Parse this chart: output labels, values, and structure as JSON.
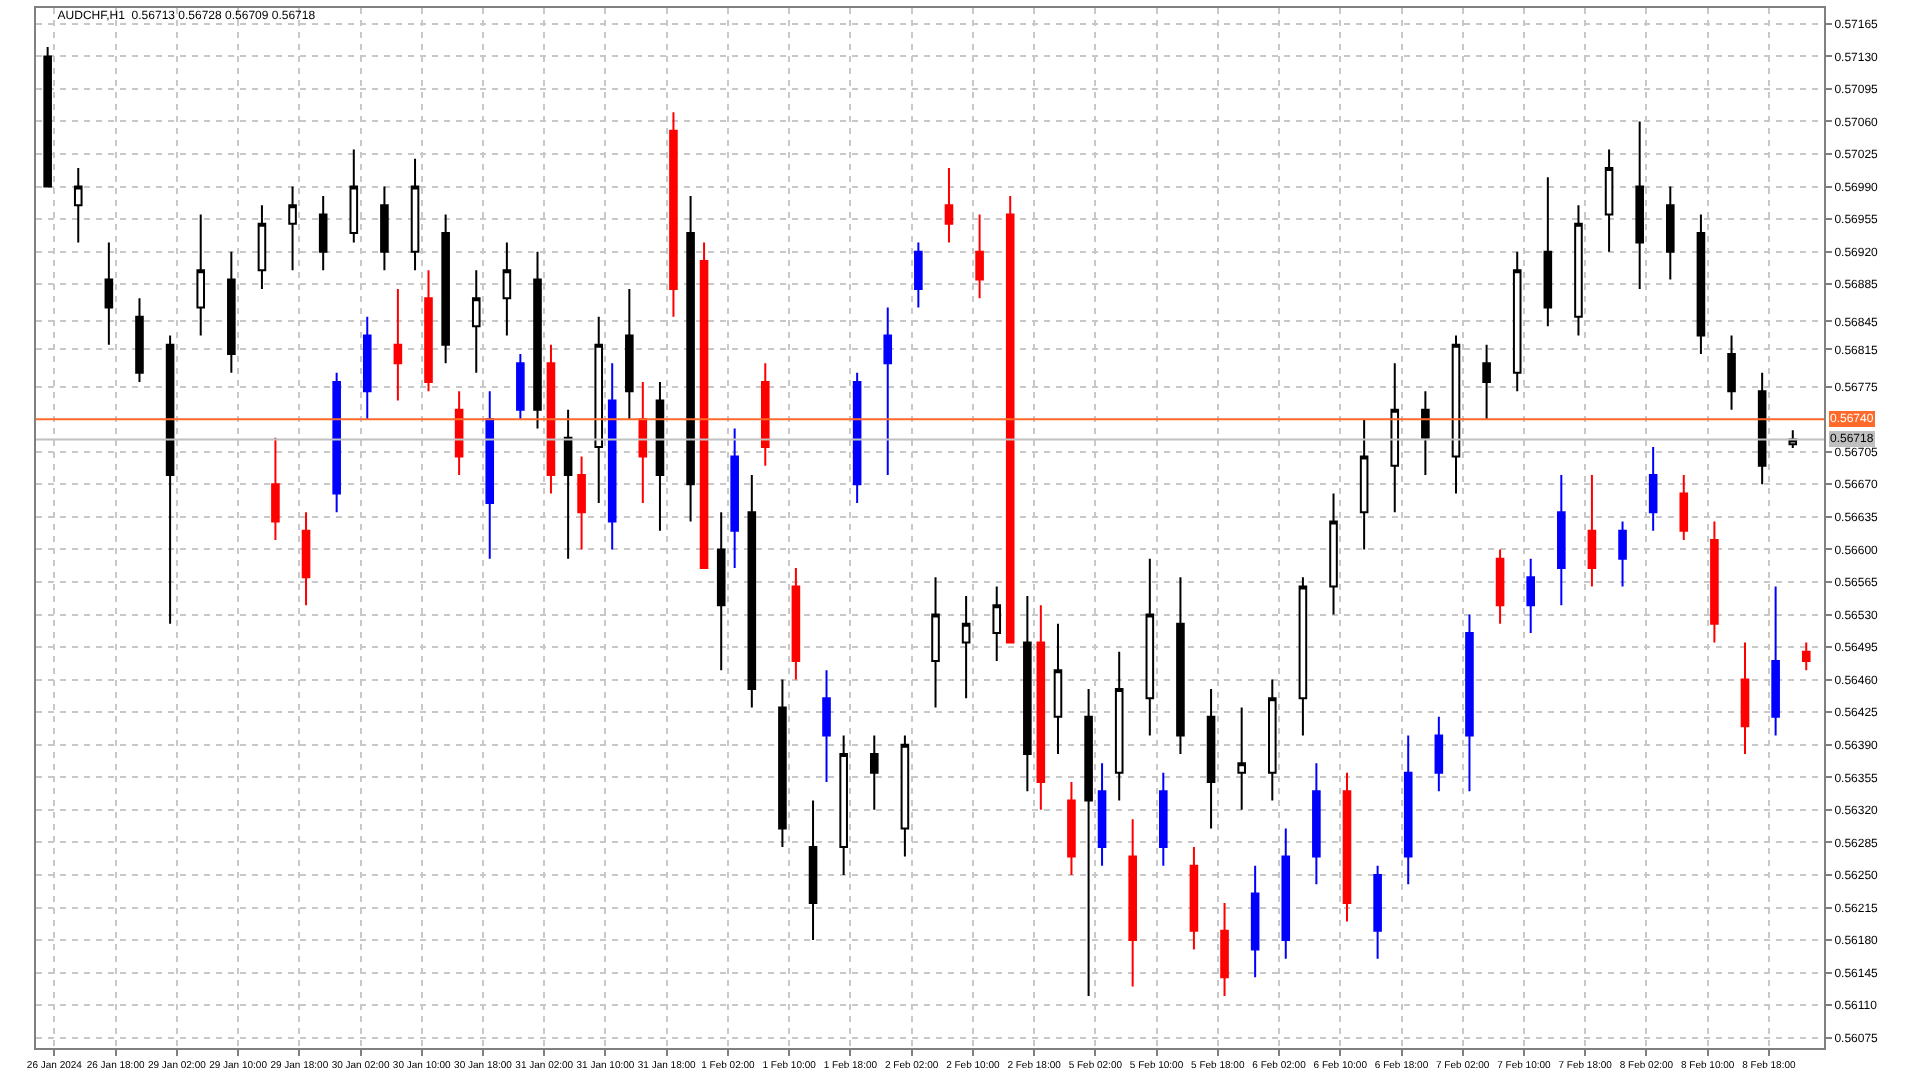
{
  "chart_data": {
    "type": "candlestick",
    "title": "AUDCHF,H1  0.56713 0.56728 0.56709 0.56718",
    "categories": [
      "26 Jan 2024",
      null,
      "26 Jan 18:00",
      null,
      "29 Jan 02:00",
      null,
      "29 Jan 10:00",
      null,
      "29 Jan 18:00",
      null,
      "30 Jan 02:00",
      null,
      "30 Jan 10:00",
      null,
      "30 Jan 18:00",
      null,
      "31 Jan 02:00",
      null,
      "31 Jan 10:00",
      null,
      "31 Jan 18:00",
      null,
      "1 Feb 02:00",
      null,
      "1 Feb 10:00",
      null,
      "1 Feb 18:00",
      null,
      "2 Feb 02:00",
      null,
      "2 Feb 10:00",
      null,
      "2 Feb 18:00",
      null,
      "5 Feb 02:00",
      null,
      "5 Feb 10:00",
      null,
      "5 Feb 18:00",
      null,
      "6 Feb 02:00",
      null,
      "6 Feb 10:00",
      null,
      "6 Feb 18:00",
      null,
      "7 Feb 02:00",
      null,
      "7 Feb 10:00",
      null,
      "7 Feb 18:00",
      null,
      "8 Feb 02:00",
      null,
      "8 Feb 10:00",
      null,
      "8 Feb 18:00",
      null
    ],
    "ylim": [
      0.56064,
      0.57182
    ],
    "yticks": [
      {
        "value": 0.56075,
        "label": "0.56075"
      },
      {
        "value": 0.5611,
        "label": "0.56110"
      },
      {
        "value": 0.56145,
        "label": "0.56145"
      },
      {
        "value": 0.5618,
        "label": "0.56180"
      },
      {
        "value": 0.56215,
        "label": "0.56215"
      },
      {
        "value": 0.5625,
        "label": "0.56250"
      },
      {
        "value": 0.56285,
        "label": "0.56285"
      },
      {
        "value": 0.5632,
        "label": "0.56320"
      },
      {
        "value": 0.56355,
        "label": "0.56355"
      },
      {
        "value": 0.5639,
        "label": "0.56390"
      },
      {
        "value": 0.56425,
        "label": "0.56425"
      },
      {
        "value": 0.5646,
        "label": "0.56460"
      },
      {
        "value": 0.56495,
        "label": "0.56495"
      },
      {
        "value": 0.5653,
        "label": "0.56530"
      },
      {
        "value": 0.56565,
        "label": "0.56565"
      },
      {
        "value": 0.566,
        "label": "0.56600"
      },
      {
        "value": 0.56635,
        "label": "0.56635"
      },
      {
        "value": 0.5667,
        "label": "0.56670"
      },
      {
        "value": 0.56705,
        "label": "0.56705"
      },
      {
        "value": 0.56775,
        "label": "0.56775"
      },
      {
        "value": 0.56815,
        "label": "0.56815"
      },
      {
        "value": 0.56845,
        "label": "0.56845"
      },
      {
        "value": 0.56885,
        "label": "0.56885"
      },
      {
        "value": 0.5692,
        "label": "0.56920"
      },
      {
        "value": 0.56955,
        "label": "0.56955"
      },
      {
        "value": 0.5699,
        "label": "0.56990"
      },
      {
        "value": 0.57025,
        "label": "0.57025"
      },
      {
        "value": 0.5706,
        "label": "0.57060"
      },
      {
        "value": 0.57095,
        "label": "0.57095"
      },
      {
        "value": 0.5713,
        "label": "0.57130"
      },
      {
        "value": 0.57165,
        "label": "0.57165"
      }
    ],
    "grid": true,
    "ref_lines": [
      {
        "axis": "y",
        "value": 0.5674,
        "label": "0.56740",
        "color": "#ff6a2a"
      },
      {
        "axis": "y",
        "value": 0.56718,
        "label": "0.56718",
        "color": "#c0c0c0"
      }
    ],
    "series": [
      {
        "color": "#000000",
        "ohlc": [
          [
            0.5713,
            0.5714,
            0.5699,
            0.5699
          ],
          [
            0.5697,
            0.5701,
            0.5693,
            0.5699
          ],
          [
            0.5689,
            0.5693,
            0.5682,
            0.5686
          ],
          [
            0.5685,
            0.5687,
            0.5678,
            0.5679
          ],
          [
            0.5682,
            0.5683,
            0.5652,
            0.5668
          ],
          [
            0.5686,
            0.5696,
            0.5683,
            0.569
          ],
          [
            0.5689,
            0.5692,
            0.5679,
            0.5681
          ],
          [
            0.569,
            0.5697,
            0.5688,
            0.5695
          ],
          [
            0.5695,
            0.5699,
            0.569,
            0.5697
          ],
          [
            0.5696,
            0.5698,
            0.569,
            0.5692
          ],
          [
            0.5694,
            0.5703,
            0.5693,
            0.5699
          ],
          [
            0.5697,
            0.5699,
            0.569,
            0.5692
          ],
          [
            0.5692,
            0.5702,
            0.569,
            0.5699
          ],
          [
            0.5694,
            0.5696,
            0.568,
            0.5682
          ],
          [
            0.5684,
            0.569,
            0.5679,
            0.5687
          ],
          [
            0.5687,
            0.5693,
            0.5683,
            0.569
          ],
          [
            0.5689,
            0.5692,
            0.5673,
            0.5675
          ],
          [
            0.5672,
            0.5675,
            0.5659,
            0.5668
          ],
          [
            0.5671,
            0.5685,
            0.5665,
            0.5682
          ],
          [
            0.5683,
            0.5688,
            0.5674,
            0.5677
          ],
          [
            0.5676,
            0.5678,
            0.5662,
            0.5668
          ],
          [
            0.5694,
            0.5698,
            0.5663,
            0.5667
          ],
          [
            0.566,
            0.5664,
            0.5647,
            0.5654
          ],
          [
            0.5664,
            0.5668,
            0.5643,
            0.5645
          ],
          [
            0.5643,
            0.5646,
            0.5628,
            0.563
          ],
          [
            0.5628,
            0.5633,
            0.5618,
            0.5622
          ],
          [
            0.5628,
            0.564,
            0.5625,
            0.5638
          ],
          [
            0.5638,
            0.564,
            0.5632,
            0.5636
          ],
          [
            0.563,
            0.564,
            0.5627,
            0.5639
          ],
          [
            0.5648,
            0.5657,
            0.5643,
            0.5653
          ],
          [
            0.565,
            0.5655,
            0.5644,
            0.5652
          ],
          [
            0.5651,
            0.5656,
            0.5648,
            0.5654
          ],
          [
            0.565,
            0.5655,
            0.5634,
            0.5638
          ],
          [
            0.5642,
            0.5652,
            0.5638,
            0.5647
          ],
          [
            0.5642,
            0.5645,
            0.5612,
            0.5633
          ],
          [
            0.5636,
            0.5649,
            0.5633,
            0.5645
          ],
          [
            0.5644,
            0.5659,
            0.564,
            0.5653
          ],
          [
            0.5652,
            0.5657,
            0.5638,
            0.564
          ],
          [
            0.5642,
            0.5645,
            0.563,
            0.5635
          ],
          [
            0.5636,
            0.5643,
            0.5632,
            0.5637
          ],
          [
            0.5636,
            0.5646,
            0.5633,
            0.5644
          ],
          [
            0.5644,
            0.5657,
            0.564,
            0.5656
          ],
          [
            0.5656,
            0.5666,
            0.5653,
            0.5663
          ],
          [
            0.5664,
            0.5674,
            0.566,
            0.567
          ],
          [
            0.5669,
            0.568,
            0.5664,
            0.5675
          ],
          [
            0.5675,
            0.5677,
            0.5668,
            0.5672
          ],
          [
            0.567,
            0.5683,
            0.5666,
            0.5682
          ],
          [
            0.568,
            0.5682,
            0.5674,
            0.5678
          ],
          [
            0.5679,
            0.5692,
            0.5677,
            0.569
          ],
          [
            0.5692,
            0.57,
            0.5684,
            0.5686
          ],
          [
            0.5685,
            0.5697,
            0.5683,
            0.5695
          ],
          [
            0.5696,
            0.5703,
            0.5692,
            0.5701
          ],
          [
            0.5699,
            0.5706,
            0.5688,
            0.5693
          ],
          [
            0.5697,
            0.5699,
            0.5689,
            0.5692
          ],
          [
            0.5694,
            0.5696,
            0.5681,
            0.5683
          ],
          [
            0.5681,
            0.5683,
            0.5675,
            0.5677
          ],
          [
            0.5677,
            0.5679,
            0.5667,
            0.5669
          ],
          [
            0.56713,
            0.56728,
            0.56709,
            0.56718
          ]
        ]
      },
      {
        "colors": [
          null,
          null,
          null,
          null,
          null,
          null,
          null,
          "#ff0000",
          "#ff0000",
          "#0000ff",
          "#0000ff",
          "#ff0000",
          "#ff0000",
          "#ff0000",
          "#0000ff",
          "#0000ff",
          "#ff0000",
          "#ff0000",
          "#0000ff",
          "#ff0000",
          "#ff0000",
          "#ff0000",
          "#0000ff",
          "#ff0000",
          "#ff0000",
          "#0000ff",
          "#0000ff",
          "#0000ff",
          "#0000ff",
          "#ff0000",
          "#ff0000",
          "#ff0000",
          "#ff0000",
          "#ff0000",
          "#0000ff",
          "#ff0000",
          "#0000ff",
          "#ff0000",
          "#ff0000",
          "#0000ff",
          "#0000ff",
          "#0000ff",
          "#ff0000",
          "#0000ff",
          "#0000ff",
          "#0000ff",
          "#0000ff",
          "#ff0000",
          "#0000ff",
          "#0000ff",
          "#ff0000",
          "#0000ff",
          "#0000ff",
          "#ff0000",
          "#ff0000",
          "#ff0000",
          "#0000ff",
          "#ff0000"
        ],
        "ohlc": [
          null,
          null,
          null,
          null,
          null,
          null,
          null,
          [
            0.5667,
            0.5672,
            0.5661,
            0.5663
          ],
          [
            0.5662,
            0.5664,
            0.5654,
            0.5657
          ],
          [
            0.5666,
            0.5679,
            0.5664,
            0.5678
          ],
          [
            0.5677,
            0.5685,
            0.5674,
            0.5683
          ],
          [
            0.5682,
            0.5688,
            0.5676,
            0.568
          ],
          [
            0.5687,
            0.569,
            0.5677,
            0.5678
          ],
          [
            0.5675,
            0.5677,
            0.5668,
            0.567
          ],
          [
            0.5665,
            0.5677,
            0.5659,
            0.5674
          ],
          [
            0.5675,
            0.5681,
            0.5674,
            0.568
          ],
          [
            0.568,
            0.5682,
            0.5666,
            0.5668
          ],
          [
            0.5668,
            0.567,
            0.566,
            0.5664
          ],
          [
            0.5663,
            0.568,
            0.566,
            0.5676
          ],
          [
            0.5674,
            0.5678,
            0.5665,
            0.567
          ],
          [
            0.5705,
            0.5707,
            0.5685,
            0.5688
          ],
          [
            0.5691,
            0.5693,
            0.5658,
            0.5658
          ],
          [
            0.5662,
            0.5673,
            0.5658,
            0.567
          ],
          [
            0.5678,
            0.568,
            0.5669,
            0.5671
          ],
          [
            0.5656,
            0.5658,
            0.5646,
            0.5648
          ],
          [
            0.564,
            0.5647,
            0.5635,
            0.5644
          ],
          [
            0.5667,
            0.5679,
            0.5665,
            0.5678
          ],
          [
            0.568,
            0.5686,
            0.5668,
            0.5683
          ],
          [
            0.5688,
            0.5693,
            0.5686,
            0.5692
          ],
          [
            0.5697,
            0.5701,
            0.5693,
            0.5695
          ],
          [
            0.5692,
            0.5696,
            0.5687,
            0.5689
          ],
          [
            0.5696,
            0.5698,
            0.565,
            0.565
          ],
          [
            0.565,
            0.5654,
            0.5632,
            0.5635
          ],
          [
            0.5633,
            0.5635,
            0.5625,
            0.5627
          ],
          [
            0.5628,
            0.5637,
            0.5626,
            0.5634
          ],
          [
            0.5627,
            0.5631,
            0.5613,
            0.5618
          ],
          [
            0.5628,
            0.5636,
            0.5626,
            0.5634
          ],
          [
            0.5626,
            0.5628,
            0.5617,
            0.5619
          ],
          [
            0.5619,
            0.5622,
            0.5612,
            0.5614
          ],
          [
            0.5617,
            0.5626,
            0.5614,
            0.5623
          ],
          [
            0.5618,
            0.563,
            0.5616,
            0.5627
          ],
          [
            0.5627,
            0.5637,
            0.5624,
            0.5634
          ],
          [
            0.5634,
            0.5636,
            0.562,
            0.5622
          ],
          [
            0.5619,
            0.5626,
            0.5616,
            0.5625
          ],
          [
            0.5627,
            0.564,
            0.5624,
            0.5636
          ],
          [
            0.5636,
            0.5642,
            0.5634,
            0.564
          ],
          [
            0.564,
            0.5653,
            0.5634,
            0.5651
          ],
          [
            0.5659,
            0.566,
            0.5652,
            0.5654
          ],
          [
            0.5654,
            0.5659,
            0.5651,
            0.5657
          ],
          [
            0.5658,
            0.5668,
            0.5654,
            0.5664
          ],
          [
            0.5662,
            0.5668,
            0.5656,
            0.5658
          ],
          [
            0.5659,
            0.5663,
            0.5656,
            0.5662
          ],
          [
            0.5664,
            0.5671,
            0.5662,
            0.5668
          ],
          [
            0.5666,
            0.5668,
            0.5661,
            0.5662
          ],
          [
            0.5661,
            0.5663,
            0.565,
            0.5652
          ],
          [
            0.5646,
            0.565,
            0.5638,
            0.5641
          ],
          [
            0.5642,
            0.5656,
            0.564,
            0.5648
          ],
          [
            0.5649,
            0.565,
            0.5647,
            0.5648
          ]
        ]
      }
    ]
  }
}
